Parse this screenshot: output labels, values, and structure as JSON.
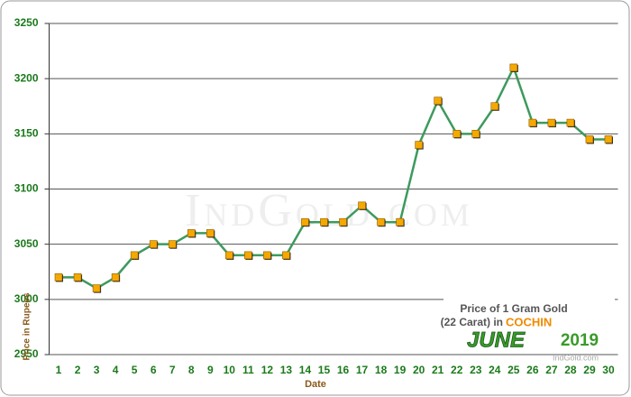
{
  "chart_data": {
    "type": "line",
    "title_line1": "Price of 1 Gram Gold",
    "title_line2": "(22 Carat) in",
    "city": "COCHIN",
    "month": "JUNE",
    "year": "2019",
    "credit": "IndGold.com",
    "watermark": "IndGold.com",
    "x_label": "Date",
    "y_label": "Price in Rupees",
    "categories": [
      "1",
      "2",
      "3",
      "4",
      "5",
      "6",
      "7",
      "8",
      "9",
      "10",
      "11",
      "12",
      "13",
      "14",
      "15",
      "16",
      "17",
      "18",
      "19",
      "20",
      "21",
      "22",
      "23",
      "24",
      "25",
      "26",
      "27",
      "28",
      "29",
      "30"
    ],
    "values": [
      3020,
      3020,
      3010,
      3020,
      3040,
      3050,
      3050,
      3060,
      3060,
      3040,
      3040,
      3040,
      3040,
      3070,
      3070,
      3070,
      3085,
      3070,
      3070,
      3140,
      3180,
      3150,
      3150,
      3175,
      3210,
      3160,
      3160,
      3160,
      3145,
      3145
    ],
    "color": "#3d9a5e",
    "marker_color": "#f5a800",
    "ylim": [
      2950,
      3250
    ],
    "yticks": [
      2950,
      3000,
      3050,
      3100,
      3150,
      3200,
      3250
    ],
    "grid": true
  }
}
